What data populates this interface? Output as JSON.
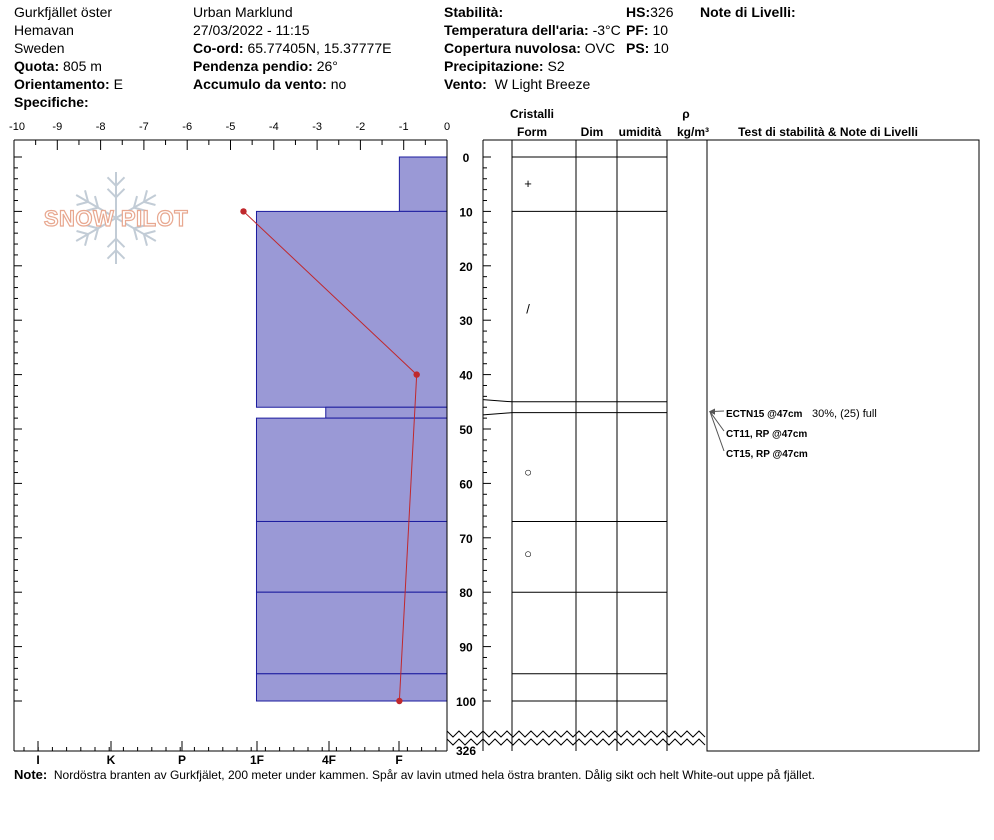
{
  "header": {
    "location": "Gurkfjället öster",
    "region": "Hemavan",
    "country": "Sweden",
    "elevation_label": "Quota:",
    "elevation_value": "805 m",
    "aspect_label": "Orientamento:",
    "aspect_value": "E",
    "specifics_label": "Specifiche:",
    "observer": "Urban Marklund",
    "datetime": "27/03/2022 - 11:15",
    "coord_label": "Co-ord:",
    "coord_value": "65.77405N, 15.37777E",
    "slope_label": "Pendenza pendio:",
    "slope_value": "26°",
    "wind_loading_label": "Accumulo da vento:",
    "wind_loading_value": "no",
    "stability_label": "Stabilità:",
    "air_temp_label": "Temperatura dell'aria:",
    "air_temp_value": "-3°C",
    "cloud_label": "Copertura nuvolosa:",
    "cloud_value": "OVC",
    "precip_label": "Precipitazione:",
    "precip_value": "S2",
    "wind_label": "Vento:",
    "wind_value": "W Light Breeze",
    "hs_label": "HS:",
    "hs_value": "326",
    "pf_label": "PF:",
    "pf_value": "10",
    "ps_label": "PS:",
    "ps_value": "10",
    "layer_notes_label": "Note di Livelli:"
  },
  "logo": {
    "text": "SNOW PILOT"
  },
  "columns": {
    "crystals": "Cristalli",
    "form": "Form",
    "dim": "Dim",
    "humidity": "umidità",
    "rho": "ρ",
    "density_unit": "kg/m³",
    "tests_notes": "Test di stabilità & Note di Livelli"
  },
  "note": {
    "label": "Note:",
    "text": "Nordöstra branten av Gurkfjälet, 200 meter under kammen. Spår av lavin utmed hela östra  branten. Dålig sikt och helt White-out uppe på fjället."
  },
  "chart_data": {
    "type": "snow-profile",
    "depth_axis": {
      "ticks": [
        0,
        10,
        20,
        30,
        40,
        50,
        60,
        70,
        80,
        90,
        100
      ],
      "bottom_label": "326",
      "range": [
        0,
        110
      ]
    },
    "temperature_axis": {
      "ticks": [
        "-10",
        "-9",
        "-8",
        "-7",
        "-6",
        "-5",
        "-4",
        "-3",
        "-2",
        "-1",
        "0"
      ],
      "range": [
        -10,
        0
      ]
    },
    "hardness_axis": {
      "labels": [
        "I",
        "K",
        "P",
        "1F",
        "4F",
        "F"
      ]
    },
    "hardness_layers": [
      {
        "top": 0,
        "bottom": 10,
        "hardness_temp_equiv": -1.1
      },
      {
        "top": 10,
        "bottom": 46,
        "hardness_temp_equiv": -4.4
      },
      {
        "top": 46,
        "bottom": 48,
        "hardness_temp_equiv": -2.8
      },
      {
        "top": 48,
        "bottom": 67,
        "hardness_temp_equiv": -4.4
      },
      {
        "top": 67,
        "bottom": 80,
        "hardness_temp_equiv": -4.4
      },
      {
        "top": 80,
        "bottom": 95,
        "hardness_temp_equiv": -4.4
      },
      {
        "top": 95,
        "bottom": 100,
        "hardness_temp_equiv": -4.4
      }
    ],
    "temperature_profile": [
      {
        "depth": 10,
        "temp": -4.7
      },
      {
        "depth": 40,
        "temp": -0.7
      },
      {
        "depth": 100,
        "temp": -1.1
      }
    ],
    "layer_boundaries": [
      0,
      10,
      45,
      47,
      67,
      80,
      95,
      100
    ],
    "crystal_forms": [
      {
        "depth": 5,
        "symbol": "+"
      },
      {
        "depth": 28,
        "symbol": "/"
      },
      {
        "depth": 58,
        "symbol": "○"
      },
      {
        "depth": 73,
        "symbol": "○"
      }
    ],
    "stability_tests": [
      {
        "depth": 47,
        "label": "ECTN15 @47cm",
        "detail": "30%, (25) full"
      },
      {
        "depth": 47,
        "label": "CT11, RP @47cm",
        "detail": ""
      },
      {
        "depth": 47,
        "label": "CT15, RP @47cm",
        "detail": ""
      }
    ]
  }
}
